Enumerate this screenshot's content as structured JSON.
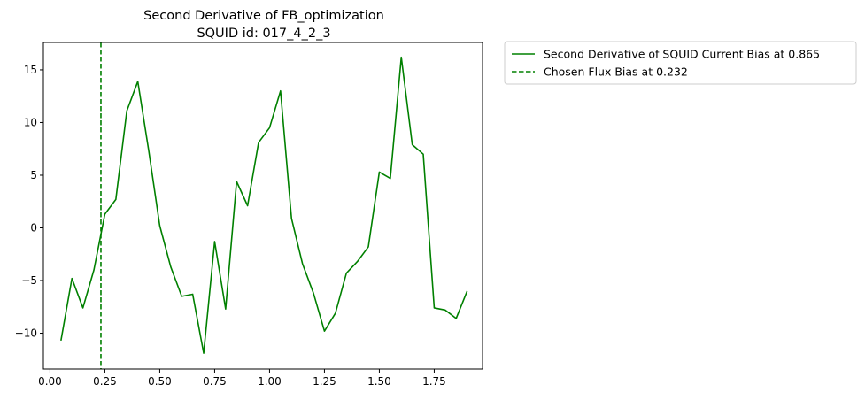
{
  "chart_data": {
    "type": "line",
    "title": "Second Derivative of FB_optimization",
    "subtitle": "SQUID id: 017_4_2_3",
    "xlabel": "",
    "ylabel": "",
    "xlim": [
      -0.03,
      1.97
    ],
    "ylim": [
      -13.4,
      17.6
    ],
    "xticks": [
      0.0,
      0.25,
      0.5,
      0.75,
      1.0,
      1.25,
      1.5,
      1.75
    ],
    "xtick_labels": [
      "0.00",
      "0.25",
      "0.50",
      "0.75",
      "1.00",
      "1.25",
      "1.50",
      "1.75"
    ],
    "yticks": [
      -10,
      -5,
      0,
      5,
      10,
      15
    ],
    "ytick_labels": [
      "−10",
      "−5",
      "0",
      "5",
      "10",
      "15"
    ],
    "grid": false,
    "legend_position": "outside-upper-right",
    "series": [
      {
        "name": "Second Derivative of SQUID Current Bias at 0.865",
        "color": "#008000",
        "style": "solid",
        "x": [
          0.05,
          0.1,
          0.15,
          0.2,
          0.25,
          0.3,
          0.35,
          0.4,
          0.45,
          0.5,
          0.55,
          0.6,
          0.65,
          0.7,
          0.75,
          0.8,
          0.85,
          0.9,
          0.95,
          1.0,
          1.05,
          1.1,
          1.15,
          1.2,
          1.25,
          1.3,
          1.35,
          1.4,
          1.45,
          1.5,
          1.55,
          1.6,
          1.65,
          1.7,
          1.75,
          1.8,
          1.85,
          1.9
        ],
        "values": [
          -10.7,
          -4.8,
          -7.6,
          -4.0,
          1.3,
          2.7,
          11.1,
          13.9,
          7.3,
          0.2,
          -3.7,
          -6.5,
          -6.3,
          -11.9,
          -1.3,
          -7.7,
          4.4,
          2.1,
          8.1,
          9.5,
          13.0,
          0.9,
          -3.4,
          -6.2,
          -9.8,
          -8.1,
          -4.3,
          -3.2,
          -1.8,
          5.3,
          4.7,
          16.2,
          7.9,
          7.0,
          -7.6,
          -7.8,
          -8.6,
          -6.0
        ]
      },
      {
        "name": "Chosen Flux Bias at 0.232",
        "color": "#008000",
        "style": "dashed",
        "vline_x": 0.232
      }
    ]
  }
}
